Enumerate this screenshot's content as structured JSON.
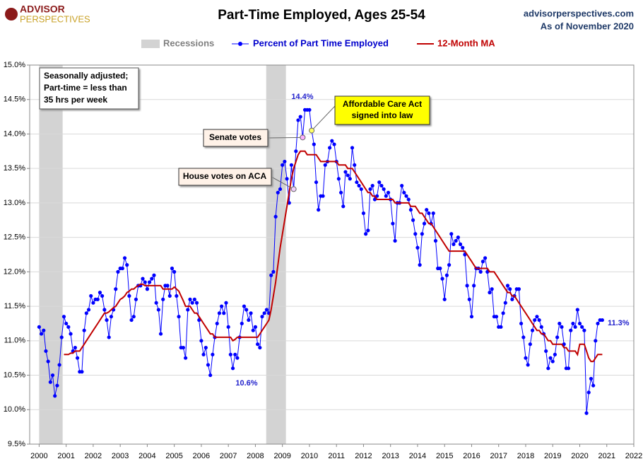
{
  "chart_data": {
    "type": "line",
    "title": "Part-Time Employed, Ages 25-54",
    "brand": [
      "ADVISOR",
      "PERSPECTIVES"
    ],
    "source": "advisorperspectives.com",
    "as_of": "As of November 2020",
    "note": [
      "Seasonally adjusted;",
      "Part-time = less than",
      "35 hrs per week"
    ],
    "annotations": [
      "14.4%",
      "10.6%",
      "11.3%"
    ],
    "callouts": {
      "house": "House votes on ACA",
      "senate": "Senate votes",
      "aca": [
        "Affordable Care Act",
        "signed into law"
      ]
    },
    "recessions": {
      "label": "Recessions",
      "color": "#d3d3d3",
      "periods": [
        [
          2000.0,
          2000.87
        ],
        [
          2008.4,
          2009.13
        ]
      ]
    },
    "xlim": [
      1999.65,
      2022
    ],
    "xticks": [
      2000,
      2001,
      2002,
      2003,
      2004,
      2005,
      2006,
      2007,
      2008,
      2009,
      2010,
      2011,
      2012,
      2013,
      2014,
      2015,
      2016,
      2017,
      2018,
      2019,
      2020,
      2021,
      2022
    ],
    "ylim": [
      9.5,
      15
    ],
    "yticks": [
      {
        "value": 9.5,
        "label": "9.5%"
      },
      {
        "value": 10,
        "label": "10.0%"
      },
      {
        "value": 10.5,
        "label": "10.5%"
      },
      {
        "value": 11,
        "label": "11.0%"
      },
      {
        "value": 11.5,
        "label": "11.5%"
      },
      {
        "value": 12,
        "label": "12.0%"
      },
      {
        "value": 12.5,
        "label": "12.5%"
      },
      {
        "value": 13,
        "label": "13.0%"
      },
      {
        "value": 13.5,
        "label": "13.5%"
      },
      {
        "value": 14,
        "label": "14.0%"
      },
      {
        "value": 14.5,
        "label": "14.5%"
      },
      {
        "value": 15,
        "label": "15.0%"
      }
    ],
    "grid": true,
    "x": [
      2000.0,
      2000.083,
      2000.167,
      2000.25,
      2000.333,
      2000.417,
      2000.5,
      2000.583,
      2000.667,
      2000.75,
      2000.833,
      2000.917,
      2001.0,
      2001.083,
      2001.167,
      2001.25,
      2001.333,
      2001.417,
      2001.5,
      2001.583,
      2001.667,
      2001.75,
      2001.833,
      2001.917,
      2002.0,
      2002.083,
      2002.167,
      2002.25,
      2002.333,
      2002.417,
      2002.5,
      2002.583,
      2002.667,
      2002.75,
      2002.833,
      2002.917,
      2003.0,
      2003.083,
      2003.167,
      2003.25,
      2003.333,
      2003.417,
      2003.5,
      2003.583,
      2003.667,
      2003.75,
      2003.833,
      2003.917,
      2004.0,
      2004.083,
      2004.167,
      2004.25,
      2004.333,
      2004.417,
      2004.5,
      2004.583,
      2004.667,
      2004.75,
      2004.833,
      2004.917,
      2005.0,
      2005.083,
      2005.167,
      2005.25,
      2005.333,
      2005.417,
      2005.5,
      2005.583,
      2005.667,
      2005.75,
      2005.833,
      2005.917,
      2006.0,
      2006.083,
      2006.167,
      2006.25,
      2006.333,
      2006.417,
      2006.5,
      2006.583,
      2006.667,
      2006.75,
      2006.833,
      2006.917,
      2007.0,
      2007.083,
      2007.167,
      2007.25,
      2007.333,
      2007.417,
      2007.5,
      2007.583,
      2007.667,
      2007.75,
      2007.833,
      2007.917,
      2008.0,
      2008.083,
      2008.167,
      2008.25,
      2008.333,
      2008.417,
      2008.5,
      2008.583,
      2008.667,
      2008.75,
      2008.833,
      2008.917,
      2009.0,
      2009.083,
      2009.167,
      2009.25,
      2009.333,
      2009.417,
      2009.5,
      2009.583,
      2009.667,
      2009.75,
      2009.833,
      2009.917,
      2010.0,
      2010.083,
      2010.167,
      2010.25,
      2010.333,
      2010.417,
      2010.5,
      2010.583,
      2010.667,
      2010.75,
      2010.833,
      2010.917,
      2011.0,
      2011.083,
      2011.167,
      2011.25,
      2011.333,
      2011.417,
      2011.5,
      2011.583,
      2011.667,
      2011.75,
      2011.833,
      2011.917,
      2012.0,
      2012.083,
      2012.167,
      2012.25,
      2012.333,
      2012.417,
      2012.5,
      2012.583,
      2012.667,
      2012.75,
      2012.833,
      2012.917,
      2013.0,
      2013.083,
      2013.167,
      2013.25,
      2013.333,
      2013.417,
      2013.5,
      2013.583,
      2013.667,
      2013.75,
      2013.833,
      2013.917,
      2014.0,
      2014.083,
      2014.167,
      2014.25,
      2014.333,
      2014.417,
      2014.5,
      2014.583,
      2014.667,
      2014.75,
      2014.833,
      2014.917,
      2015.0,
      2015.083,
      2015.167,
      2015.25,
      2015.333,
      2015.417,
      2015.5,
      2015.583,
      2015.667,
      2015.75,
      2015.833,
      2015.917,
      2016.0,
      2016.083,
      2016.167,
      2016.25,
      2016.333,
      2016.417,
      2016.5,
      2016.583,
      2016.667,
      2016.75,
      2016.833,
      2016.917,
      2017.0,
      2017.083,
      2017.167,
      2017.25,
      2017.333,
      2017.417,
      2017.5,
      2017.583,
      2017.667,
      2017.75,
      2017.833,
      2017.917,
      2018.0,
      2018.083,
      2018.167,
      2018.25,
      2018.333,
      2018.417,
      2018.5,
      2018.583,
      2018.667,
      2018.75,
      2018.833,
      2018.917,
      2019.0,
      2019.083,
      2019.167,
      2019.25,
      2019.333,
      2019.417,
      2019.5,
      2019.583,
      2019.667,
      2019.75,
      2019.833,
      2019.917,
      2020.0,
      2020.083,
      2020.167,
      2020.25,
      2020.333,
      2020.417,
      2020.5,
      2020.583,
      2020.667,
      2020.75,
      2020.833
    ],
    "series": [
      {
        "name": "Percent of Part Time Employed",
        "color": "#0000ff",
        "values": [
          11.2,
          11.1,
          11.15,
          10.85,
          10.7,
          10.4,
          10.5,
          10.2,
          10.35,
          10.65,
          11.05,
          11.35,
          11.25,
          11.2,
          11.1,
          10.85,
          10.9,
          10.75,
          10.55,
          10.55,
          11.15,
          11.4,
          11.45,
          11.65,
          11.55,
          11.6,
          11.6,
          11.7,
          11.65,
          11.45,
          11.3,
          11.05,
          11.35,
          11.45,
          11.75,
          12.0,
          12.05,
          12.05,
          12.2,
          12.1,
          11.65,
          11.3,
          11.35,
          11.6,
          11.8,
          11.8,
          11.9,
          11.85,
          11.75,
          11.85,
          11.9,
          11.95,
          11.55,
          11.45,
          11.1,
          11.6,
          11.8,
          11.8,
          11.65,
          12.05,
          12.0,
          11.65,
          11.35,
          10.9,
          10.9,
          10.75,
          11.45,
          11.6,
          11.55,
          11.6,
          11.55,
          11.3,
          11.0,
          10.8,
          10.9,
          10.65,
          10.5,
          10.8,
          11.05,
          11.25,
          11.4,
          11.5,
          11.4,
          11.55,
          11.2,
          10.8,
          10.6,
          10.8,
          10.75,
          11.05,
          11.25,
          11.5,
          11.45,
          11.3,
          11.4,
          11.15,
          11.2,
          10.95,
          10.9,
          11.35,
          11.4,
          11.45,
          11.4,
          11.95,
          12.0,
          12.8,
          13.15,
          13.2,
          13.55,
          13.6,
          13.35,
          13.0,
          13.55,
          13.2,
          13.75,
          14.2,
          14.25,
          13.95,
          14.35,
          14.35,
          14.35,
          14.05,
          13.85,
          13.3,
          12.9,
          13.1,
          13.1,
          13.55,
          13.6,
          13.8,
          13.9,
          13.85,
          13.6,
          13.35,
          13.15,
          12.95,
          13.45,
          13.4,
          13.35,
          13.8,
          13.55,
          13.3,
          13.25,
          13.2,
          12.85,
          12.55,
          12.6,
          13.2,
          13.25,
          13.05,
          13.1,
          13.3,
          13.25,
          13.2,
          13.1,
          13.15,
          13.05,
          12.7,
          12.45,
          13.0,
          13.0,
          13.25,
          13.15,
          13.1,
          13.05,
          12.9,
          12.75,
          12.55,
          12.35,
          12.1,
          12.55,
          12.7,
          12.9,
          12.85,
          12.7,
          12.85,
          12.45,
          12.05,
          12.05,
          11.9,
          11.6,
          11.95,
          12.1,
          12.55,
          12.4,
          12.45,
          12.5,
          12.4,
          12.35,
          12.25,
          11.8,
          11.6,
          11.35,
          11.8,
          12.05,
          12.05,
          12.0,
          12.15,
          12.2,
          12.0,
          11.7,
          11.75,
          11.35,
          11.35,
          11.2,
          11.2,
          11.4,
          11.55,
          11.8,
          11.75,
          11.6,
          11.65,
          11.75,
          11.75,
          11.25,
          11.05,
          10.75,
          10.65,
          10.95,
          11.15,
          11.3,
          11.35,
          11.3,
          11.2,
          11.1,
          10.85,
          10.6,
          10.75,
          10.7,
          10.8,
          11.05,
          11.25,
          11.2,
          10.95,
          10.6,
          10.6,
          11.15,
          11.25,
          11.2,
          11.45,
          11.25,
          11.2,
          11.15,
          9.95,
          10.25,
          10.45,
          10.35,
          11.0,
          11.25,
          11.3,
          11.3
        ]
      },
      {
        "name": "12-Month MA",
        "color": "#c00000",
        "values": [
          null,
          null,
          null,
          null,
          null,
          null,
          null,
          null,
          null,
          null,
          null,
          10.8,
          10.8,
          10.8,
          10.82,
          10.82,
          10.85,
          10.85,
          10.85,
          10.9,
          10.95,
          11.0,
          11.05,
          11.1,
          11.15,
          11.2,
          11.25,
          11.3,
          11.35,
          11.4,
          11.4,
          11.42,
          11.45,
          11.48,
          11.5,
          11.55,
          11.6,
          11.62,
          11.65,
          11.7,
          11.72,
          11.75,
          11.75,
          11.78,
          11.8,
          11.82,
          11.82,
          11.8,
          11.8,
          11.8,
          11.8,
          11.8,
          11.8,
          11.8,
          11.8,
          11.75,
          11.75,
          11.75,
          11.75,
          11.75,
          11.78,
          11.75,
          11.72,
          11.65,
          11.58,
          11.5,
          11.5,
          11.5,
          11.45,
          11.4,
          11.4,
          11.35,
          11.3,
          11.25,
          11.2,
          11.15,
          11.1,
          11.1,
          11.05,
          11.05,
          11.05,
          11.05,
          11.05,
          11.05,
          11.05,
          11.05,
          11.0,
          11.02,
          11.05,
          11.05,
          11.05,
          11.05,
          11.05,
          11.05,
          11.05,
          11.05,
          11.05,
          11.05,
          11.1,
          11.15,
          11.2,
          11.25,
          11.3,
          11.45,
          11.65,
          11.85,
          12.1,
          12.35,
          12.55,
          12.75,
          12.95,
          13.15,
          13.35,
          13.5,
          13.6,
          13.7,
          13.75,
          13.75,
          13.75,
          13.7,
          13.7,
          13.7,
          13.7,
          13.7,
          13.65,
          13.6,
          13.6,
          13.6,
          13.6,
          13.6,
          13.6,
          13.6,
          13.6,
          13.55,
          13.55,
          13.55,
          13.55,
          13.5,
          13.5,
          13.5,
          13.45,
          13.4,
          13.35,
          13.3,
          13.25,
          13.2,
          13.15,
          13.15,
          13.1,
          13.1,
          13.05,
          13.05,
          13.05,
          13.05,
          13.05,
          13.05,
          13.05,
          13.05,
          13.0,
          13.0,
          13.0,
          13.0,
          13.0,
          13.0,
          13.0,
          12.95,
          12.95,
          12.95,
          12.9,
          12.85,
          12.85,
          12.8,
          12.75,
          12.7,
          12.7,
          12.65,
          12.6,
          12.55,
          12.5,
          12.45,
          12.4,
          12.35,
          12.3,
          12.3,
          12.3,
          12.3,
          12.3,
          12.3,
          12.3,
          12.3,
          12.25,
          12.2,
          12.15,
          12.1,
          12.05,
          12.05,
          12.05,
          12.05,
          12.05,
          12.05,
          12.0,
          12.0,
          12.0,
          11.95,
          11.9,
          11.85,
          11.8,
          11.75,
          11.7,
          11.7,
          11.65,
          11.65,
          11.6,
          11.55,
          11.5,
          11.45,
          11.4,
          11.35,
          11.3,
          11.25,
          11.2,
          11.15,
          11.15,
          11.1,
          11.1,
          11.05,
          11.0,
          11.0,
          10.95,
          10.95,
          10.95,
          10.95,
          10.95,
          10.9,
          10.9,
          10.85,
          10.85,
          10.85,
          10.85,
          10.8,
          10.95,
          10.95,
          10.95,
          10.85,
          10.75,
          10.7,
          10.7,
          10.75,
          10.8,
          10.8,
          10.8
        ]
      }
    ]
  }
}
